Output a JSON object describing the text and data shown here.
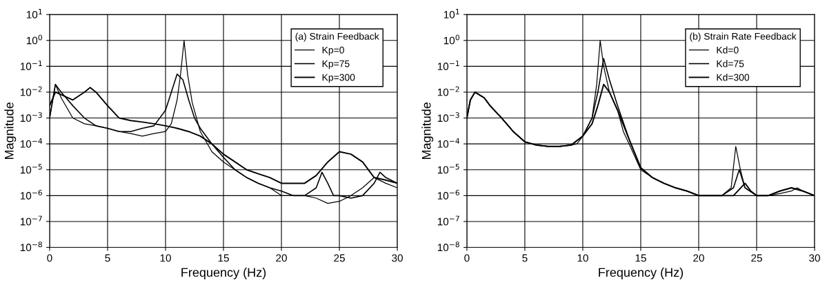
{
  "chart_data": [
    {
      "type": "line",
      "xlabel": "Frequency (Hz)",
      "ylabel": "Magnitude",
      "legend_title": "(a) Strain Feedback",
      "log": "y",
      "grid": true,
      "legend": "top right",
      "xlim": [
        0,
        30
      ],
      "xticks": [
        0,
        5,
        10,
        15,
        20,
        25,
        30
      ],
      "ylim": [
        1e-08,
        10
      ],
      "yticks": [
        {
          "value": 1e-08,
          "label": "10$^{−8}$"
        },
        {
          "value": 1e-07,
          "label": "10$^{−7}$"
        },
        {
          "value": 1e-06,
          "label": "10$^{−6}$"
        },
        {
          "value": 1e-05,
          "label": "10$^{−5}$"
        },
        {
          "value": 0.0001,
          "label": "10$^{−4}$"
        },
        {
          "value": 0.001,
          "label": "10$^{−3}$"
        },
        {
          "value": 0.01,
          "label": "10$^{−2}$"
        },
        {
          "value": 0.1,
          "label": "10$^{−1}$"
        },
        {
          "value": 1,
          "label": "10$^{0}$"
        },
        {
          "value": 10,
          "label": "10$^{1}$"
        }
      ],
      "series": [
        {
          "name": "Kp=0",
          "color": "#000000",
          "x": [
            0,
            0.5,
            1,
            2,
            3,
            4,
            5,
            6,
            7,
            8,
            9,
            10,
            10.5,
            11,
            11.3,
            11.6,
            11.9,
            12.3,
            13,
            14,
            15,
            16,
            17,
            18,
            19,
            20,
            21,
            22,
            23,
            24,
            25,
            26,
            27,
            28,
            29,
            30
          ],
          "values": [
            0.001,
            0.02,
            0.006,
            0.001,
            0.0006,
            0.0005,
            0.0004,
            0.0003,
            0.00025,
            0.0002,
            0.00025,
            0.0003,
            0.0006,
            0.005,
            0.05,
            1,
            0.05,
            0.004,
            0.0003,
            5e-05,
            2e-05,
            1e-05,
            5e-06,
            3e-06,
            2e-06,
            1e-06,
            1e-06,
            1e-06,
            8e-07,
            5e-07,
            6e-07,
            1e-06,
            2e-06,
            5e-06,
            3e-06,
            2e-06
          ]
        },
        {
          "name": "Kp=75",
          "color": "#000000",
          "x": [
            0,
            0.5,
            1,
            2,
            3,
            4,
            5,
            6,
            7,
            8,
            9,
            10,
            10.5,
            11,
            11.5,
            12,
            12.5,
            13,
            14,
            15,
            16,
            17,
            18,
            19,
            20,
            21,
            22,
            23,
            23.5,
            24,
            24.5,
            25,
            26,
            27,
            28,
            28.5,
            29,
            30
          ],
          "values": [
            0.001,
            0.02,
            0.01,
            0.003,
            0.001,
            0.0005,
            0.0004,
            0.0003,
            0.0003,
            0.0004,
            0.0005,
            0.002,
            0.01,
            0.05,
            0.03,
            0.005,
            0.001,
            0.0004,
            0.0001,
            3e-05,
            1e-05,
            5e-06,
            3e-06,
            2e-06,
            1.5e-06,
            1e-06,
            1e-06,
            2e-06,
            8e-06,
            3e-06,
            1e-06,
            1e-06,
            8e-07,
            1e-06,
            3e-06,
            8e-06,
            5e-06,
            3e-06
          ]
        },
        {
          "name": "Kp=300",
          "color": "#000000",
          "x": [
            0,
            0.5,
            1,
            2,
            3,
            3.5,
            4,
            5,
            6,
            7,
            8,
            9,
            10,
            11,
            12,
            13,
            14,
            15,
            16,
            17,
            18,
            19,
            20,
            21,
            22,
            23,
            24,
            25,
            26,
            27,
            28,
            29,
            30
          ],
          "values": [
            0.003,
            0.01,
            0.008,
            0.005,
            0.01,
            0.015,
            0.01,
            0.003,
            0.001,
            0.0008,
            0.0007,
            0.0006,
            0.0005,
            0.0004,
            0.0003,
            0.0002,
            0.0001,
            4e-05,
            2e-05,
            1e-05,
            7e-06,
            5e-06,
            3e-06,
            3e-06,
            3e-06,
            6e-06,
            2e-05,
            5e-05,
            4e-05,
            2e-05,
            5e-06,
            4e-06,
            3e-06
          ]
        }
      ]
    },
    {
      "type": "line",
      "xlabel": "Frequency (Hz)",
      "ylabel": "Magnitude",
      "legend_title": "(b) Strain Rate Feedback",
      "log": "y",
      "grid": true,
      "legend": "top right",
      "xlim": [
        0,
        30
      ],
      "xticks": [
        0,
        5,
        10,
        15,
        20,
        25,
        30
      ],
      "ylim": [
        1e-08,
        10
      ],
      "yticks": [
        {
          "value": 1e-08,
          "label": "10$^{−8}$"
        },
        {
          "value": 1e-07,
          "label": "10$^{−7}$"
        },
        {
          "value": 1e-06,
          "label": "10$^{−6}$"
        },
        {
          "value": 1e-05,
          "label": "10$^{−5}$"
        },
        {
          "value": 0.0001,
          "label": "10$^{−4}$"
        },
        {
          "value": 0.001,
          "label": "10$^{−3}$"
        },
        {
          "value": 0.01,
          "label": "10$^{−2}$"
        },
        {
          "value": 0.1,
          "label": "10$^{−1}$"
        },
        {
          "value": 1,
          "label": "10$^{0}$"
        },
        {
          "value": 10,
          "label": "10$^{1}$"
        }
      ],
      "series": [
        {
          "name": "Kd=0",
          "color": "#000000",
          "x": [
            0,
            0.3,
            0.7,
            1.5,
            2,
            3,
            4,
            5,
            6,
            7,
            8,
            9,
            9.5,
            10,
            10.8,
            11.2,
            11.5,
            11.8,
            12.3,
            13,
            13.5,
            14,
            15,
            16,
            17,
            18,
            19,
            20,
            21,
            22,
            22.8,
            23.2,
            23.6,
            24,
            25,
            26,
            27,
            28,
            28.5,
            29,
            30
          ],
          "values": [
            0.001,
            0.005,
            0.01,
            0.006,
            0.003,
            0.001,
            0.0003,
            0.00012,
            9e-05,
            8e-05,
            8e-05,
            9e-05,
            0.0001,
            0.0002,
            0.001,
            0.02,
            1,
            0.1,
            0.01,
            0.002,
            0.0003,
            0.0001,
            1e-05,
            5e-06,
            3e-06,
            2e-06,
            1.5e-06,
            1e-06,
            1e-06,
            1e-06,
            2e-06,
            8e-05,
            1e-05,
            2e-06,
            1e-06,
            1e-06,
            1.2e-06,
            1.5e-06,
            2e-06,
            1.5e-06,
            1e-06
          ]
        },
        {
          "name": "Kd=75",
          "color": "#000000",
          "x": [
            0,
            0.3,
            0.7,
            1.5,
            2,
            3,
            4,
            5,
            6,
            7,
            8,
            9,
            10,
            10.8,
            11.3,
            11.8,
            12.3,
            13,
            14,
            15,
            16,
            17,
            18,
            19,
            20,
            21,
            22,
            23,
            23.5,
            24,
            25,
            26,
            27,
            28,
            29,
            30
          ],
          "values": [
            0.001,
            0.005,
            0.01,
            0.006,
            0.003,
            0.001,
            0.0003,
            0.00012,
            9e-05,
            8e-05,
            8e-05,
            9e-05,
            0.0002,
            0.001,
            0.01,
            0.2,
            0.03,
            0.003,
            0.00015,
            1.2e-05,
            5e-06,
            3e-06,
            2e-06,
            1.5e-06,
            1e-06,
            1e-06,
            1e-06,
            2e-06,
            1e-05,
            2e-06,
            1e-06,
            1e-06,
            1.5e-06,
            2e-06,
            1.5e-06,
            1e-06
          ]
        },
        {
          "name": "Kd=300",
          "color": "#000000",
          "x": [
            0,
            0.3,
            0.7,
            1.5,
            2,
            3,
            4,
            5,
            6,
            7,
            8,
            9,
            10,
            10.8,
            11.3,
            11.8,
            12.3,
            13,
            14,
            15,
            16,
            17,
            18,
            19,
            20,
            21,
            22,
            23,
            24,
            24.5,
            25,
            26,
            27,
            28,
            29,
            30
          ],
          "values": [
            0.001,
            0.005,
            0.01,
            0.006,
            0.003,
            0.001,
            0.0003,
            0.00012,
            9e-05,
            8e-05,
            8e-05,
            9e-05,
            0.0002,
            0.0006,
            0.003,
            0.02,
            0.01,
            0.002,
            0.00015,
            1.2e-05,
            5e-06,
            3e-06,
            2e-06,
            1.5e-06,
            1e-06,
            1e-06,
            1e-06,
            1e-06,
            3e-06,
            1.5e-06,
            1e-06,
            1e-06,
            1.5e-06,
            2e-06,
            1.5e-06,
            1e-06
          ]
        }
      ]
    }
  ]
}
